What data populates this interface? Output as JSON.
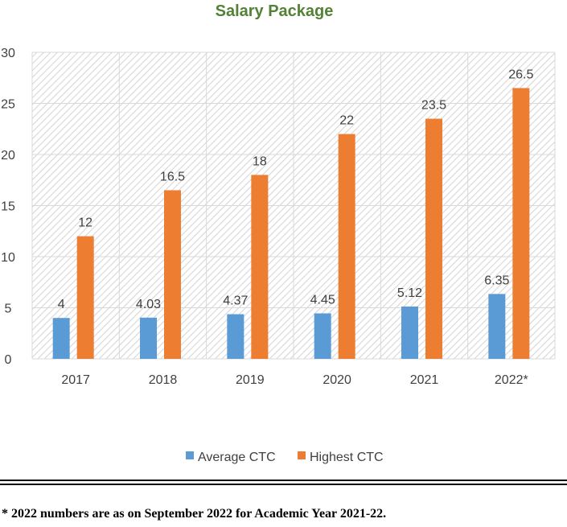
{
  "chart_data": {
    "type": "bar",
    "title": "Salary Package",
    "categories": [
      "2017",
      "2018",
      "2019",
      "2020",
      "2021",
      "2022*"
    ],
    "series": [
      {
        "name": "Average CTC",
        "values": [
          4,
          4.03,
          4.37,
          4.45,
          5.12,
          6.35
        ]
      },
      {
        "name": "Highest CTC",
        "values": [
          12,
          16.5,
          18,
          22,
          23.5,
          26.5
        ]
      }
    ],
    "data_labels": [
      [
        "4",
        "4.03",
        "4.37",
        "4.45",
        "5.12",
        "6.35"
      ],
      [
        "12",
        "16.5",
        "18",
        "22",
        "23.5",
        "26.5"
      ]
    ],
    "xlabel": "",
    "ylabel": "",
    "ylim": [
      0,
      30
    ],
    "yticks": [
      0,
      5,
      10,
      15,
      20,
      25,
      30
    ],
    "grid": true,
    "legend_position": "bottom"
  },
  "colors": {
    "title": "#538135",
    "average_ctc": "#5B9BD5",
    "highest_ctc": "#ED7D31",
    "gridline": "#D9D9D9",
    "plot_hatch": "#D0D0D0"
  },
  "footnote": "* 2022 numbers are as on September 2022 for Academic Year 2021-22."
}
